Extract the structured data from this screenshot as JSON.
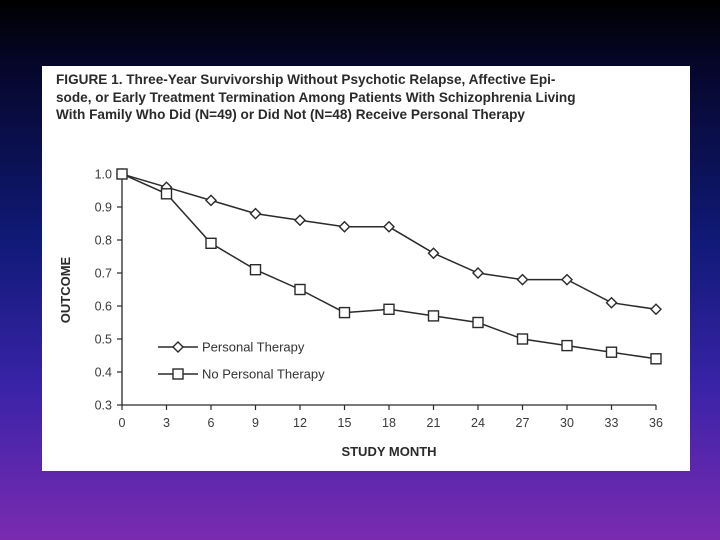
{
  "colors": {
    "line": "#2a2a2a",
    "marker_fill": "#ffffff",
    "panel": "#ffffff"
  },
  "chart_data": {
    "type": "line",
    "title": "FIGURE 1. Three-Year Survivorship Without Psychotic Relapse, Affective Episode, or Early Treatment Termination Among Patients With Schizophrenia Living With Family Who Did (N=49) or Did Not (N=48) Receive Personal Therapy",
    "title_lines": [
      "FIGURE 1. Three-Year Survivorship Without Psychotic Relapse, Affective Epi-",
      "sode, or Early Treatment Termination Among Patients With Schizophrenia Living",
      "With Family Who Did (N=49) or Did Not (N=48) Receive Personal Therapy"
    ],
    "xlabel": "STUDY MONTH",
    "ylabel": "OUTCOME",
    "xlim": [
      0,
      36
    ],
    "ylim": [
      0.3,
      1.0
    ],
    "x": [
      0,
      3,
      6,
      9,
      12,
      15,
      18,
      21,
      24,
      27,
      30,
      33,
      36
    ],
    "x_ticks": [
      "0",
      "3",
      "6",
      "9",
      "12",
      "15",
      "18",
      "21",
      "24",
      "27",
      "30",
      "33",
      "36"
    ],
    "y_ticks": [
      "1.0",
      "0.9",
      "0.8",
      "0.7",
      "0.6",
      "0.5",
      "0.4",
      "0.3"
    ],
    "y_tick_values": [
      1.0,
      0.9,
      0.8,
      0.7,
      0.6,
      0.5,
      0.4,
      0.3
    ],
    "grid": false,
    "legend_position": "bottom-left",
    "series": [
      {
        "name": "Personal Therapy",
        "marker": "diamond",
        "values": [
          1.0,
          0.96,
          0.92,
          0.88,
          0.86,
          0.84,
          0.84,
          0.76,
          0.7,
          0.68,
          0.68,
          0.61,
          0.59
        ]
      },
      {
        "name": "No Personal Therapy",
        "marker": "square",
        "values": [
          1.0,
          0.94,
          0.79,
          0.71,
          0.65,
          0.58,
          0.59,
          0.57,
          0.55,
          0.5,
          0.48,
          0.46,
          0.44
        ]
      }
    ]
  }
}
